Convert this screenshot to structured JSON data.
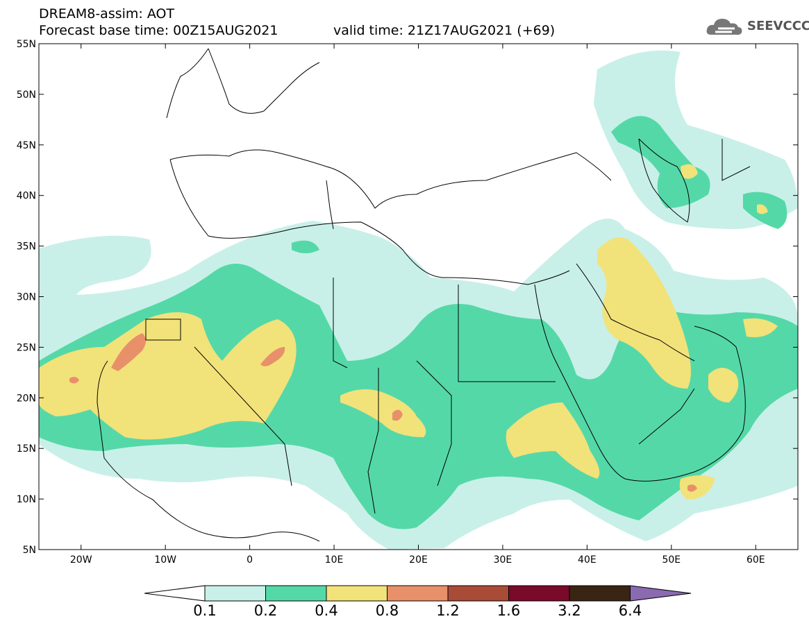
{
  "header": {
    "line1": "DREAM8-assim: AOT",
    "line2": "Forecast base time: 00Z15AUG2021",
    "valid": "valid time: 21Z17AUG2021 (+69)",
    "logo_text": "SEEVCCC"
  },
  "map": {
    "lon_range": [
      -25,
      65
    ],
    "lat_range": [
      5,
      55
    ],
    "lat_labels": [
      "55N",
      "50N",
      "45N",
      "40N",
      "35N",
      "30N",
      "25N",
      "20N",
      "15N",
      "10N",
      "5N"
    ],
    "lon_labels": [
      "20W",
      "10W",
      "0",
      "10E",
      "20E",
      "30E",
      "40E",
      "50E",
      "60E"
    ]
  },
  "colorbar": {
    "labels": [
      "0.1",
      "0.2",
      "0.4",
      "0.8",
      "1.2",
      "1.6",
      "3.2",
      "6.4"
    ],
    "colors": [
      "#ffffff",
      "#c8f0e8",
      "#55d8a8",
      "#f2e27a",
      "#e8906a",
      "#a84c38",
      "#7a0a2a",
      "#3a2414",
      "#8a6ab0"
    ]
  }
}
